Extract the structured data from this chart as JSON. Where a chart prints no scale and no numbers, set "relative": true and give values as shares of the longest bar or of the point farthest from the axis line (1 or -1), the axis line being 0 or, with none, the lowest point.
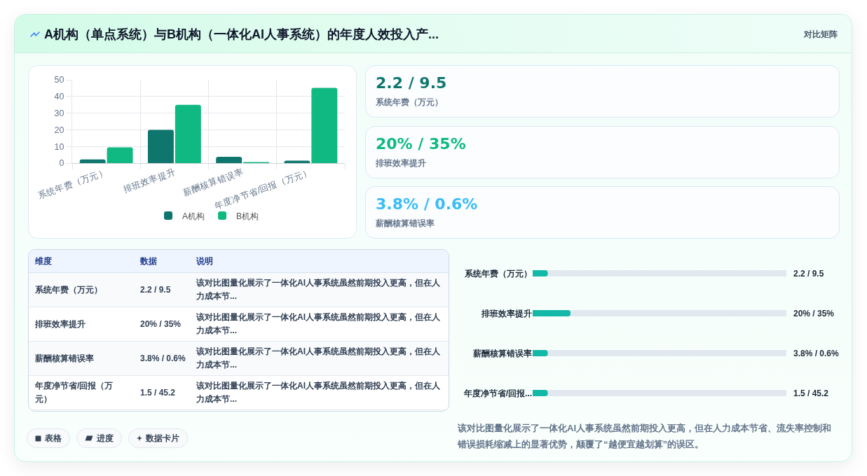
{
  "chart_data": [
    {
      "type": "other",
      "title": "A机构（单点系统）与B机构（一体化AI人事系统）的年度人效投入产...",
      "annotations": [
        "对比矩阵"
      ]
    },
    {
      "type": "bar",
      "categories": [
        "系统年费（万元）",
        "排班效率提升",
        "薪酬核算错误率",
        "年度净节省/回报（万元）"
      ],
      "series": [
        {
          "name": "A机构",
          "color": "#0f766e",
          "values": [
            2.2,
            20,
            3.8,
            1.5
          ]
        },
        {
          "name": "B机构",
          "color": "#10b981",
          "values": [
            9.5,
            35,
            0.6,
            45.2
          ]
        }
      ],
      "ylim": [
        0,
        50
      ],
      "yticks": [
        0,
        10,
        20,
        30,
        40,
        50
      ],
      "grid": true,
      "legend": "bottom"
    },
    {
      "type": "other",
      "title": "2.2 / 9.5",
      "subtitle": "系统年费（万元）",
      "color": "#0f766e"
    },
    {
      "type": "other",
      "title": "20% / 35%",
      "subtitle": "排班效率提升",
      "color": "#10b981"
    },
    {
      "type": "other",
      "title": "3.8% / 0.6%",
      "subtitle": "薪酬核算错误率",
      "color": "#38bdf8"
    },
    {
      "type": "other",
      "categories": [
        "维度",
        "数据",
        "说明"
      ],
      "annotations": [
        "系统年费（万元）",
        "2.2 / 9.5",
        "该对比图量化展示了一体化AI人事系统虽然前期投入更高，但在人力成本节...",
        "排班效率提升",
        "20% / 35%",
        "该对比图量化展示了一体化AI人事系统虽然前期投入更高，但在人力成本节...",
        "薪酬核算错误率",
        "3.8% / 0.6%",
        "该对比图量化展示了一体化AI人事系统虽然前期投入更高，但在人力成本节...",
        "年度净节省/回报（万元）",
        "1.5 / 45.2",
        "该对比图量化展示了一体化AI人事系统虽然前期投入更高，但在人力成本节..."
      ]
    },
    {
      "type": "bar",
      "orientation": "horizontal",
      "relative": true,
      "categories": [
        "系统年费（万元）",
        "排班效率提升",
        "薪酬核算错误率",
        "年度净节省/回报..."
      ],
      "y2_categories": [
        "2.2 / 9.5",
        "20% / 35%",
        "3.8% / 0.6%",
        "1.5 / 45.2"
      ],
      "values": [
        0.4,
        1,
        0.4,
        0.4
      ],
      "color": "#14b8a6",
      "annotations": [
        "该对比图量化展示了一体化AI人事系统虽然前期投入更高，但在人力成本节省、流失率控制和错误损耗缩减上的显著优势，颠覆了“越便宜越划算”的误区。"
      ]
    },
    {
      "type": "other",
      "annotations": [
        "表格",
        "进度",
        "数据卡片"
      ]
    }
  ]
}
